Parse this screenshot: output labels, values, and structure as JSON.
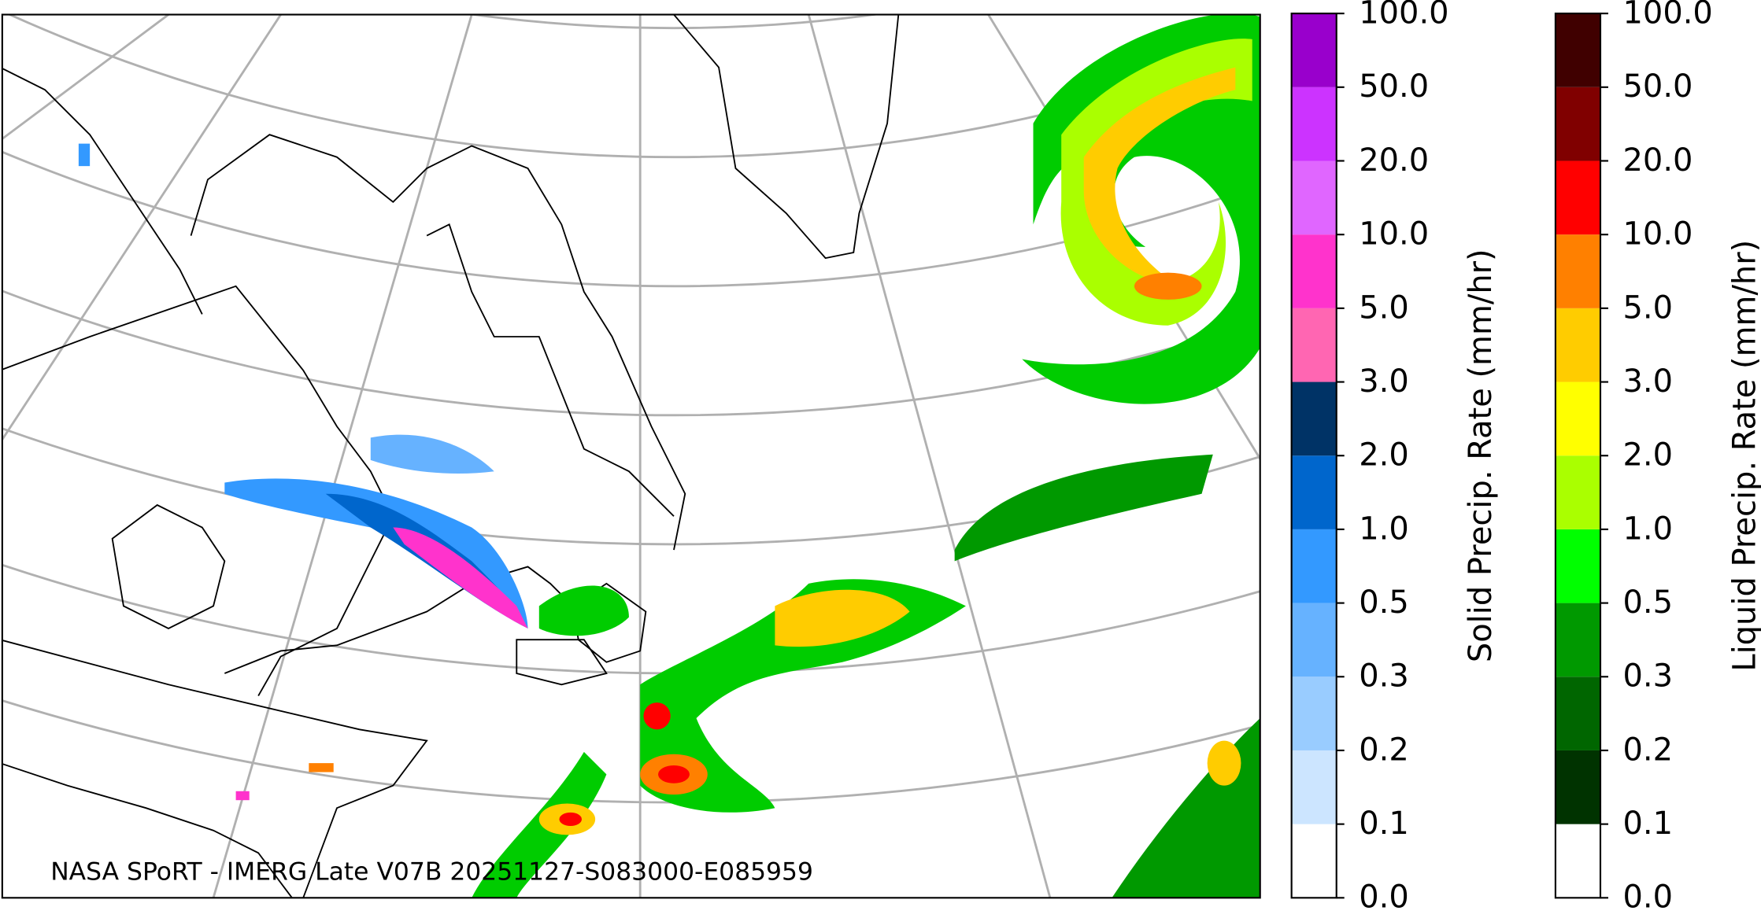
{
  "map": {
    "caption": "NASA SPoRT - IMERG Late V07B 20251127-S083000-E085959"
  },
  "colorbars": [
    {
      "label": "Solid Precip. Rate (mm/hr)",
      "ticks": [
        {
          "value": 0,
          "label": "0.0"
        },
        0.1,
        0.2,
        0.3,
        0.5,
        {
          "value": 1,
          "label": "1.0"
        },
        {
          "value": 2,
          "label": "2.0"
        },
        {
          "value": 3,
          "label": "3.0"
        },
        {
          "value": 5,
          "label": "5.0"
        },
        {
          "value": 10,
          "label": "10.0"
        },
        {
          "value": 20,
          "label": "20.0"
        },
        {
          "value": 50,
          "label": "50.0"
        },
        {
          "value": 100,
          "label": "100.0"
        }
      ],
      "colors": [
        "#ffffff",
        "#cce5ff",
        "#99ccff",
        "#66b2ff",
        "#3399ff",
        "#0066cc",
        "#003366",
        "#ff66b2",
        "#ff33cc",
        "#e066ff",
        "#cc33ff",
        "#9900cc"
      ]
    },
    {
      "label": "Liquid Precip. Rate (mm/hr)",
      "ticks": [
        {
          "value": 0,
          "label": "0.0"
        },
        0.1,
        0.2,
        0.3,
        0.5,
        {
          "value": 1,
          "label": "1.0"
        },
        {
          "value": 2,
          "label": "2.0"
        },
        {
          "value": 3,
          "label": "3.0"
        },
        {
          "value": 5,
          "label": "5.0"
        },
        {
          "value": 10,
          "label": "10.0"
        },
        {
          "value": 20,
          "label": "20.0"
        },
        {
          "value": 50,
          "label": "50.0"
        },
        {
          "value": 100,
          "label": "100.0"
        }
      ],
      "colors": [
        "#ffffff",
        "#003300",
        "#006600",
        "#009900",
        "#00ff00",
        "#aaff00",
        "#ffff00",
        "#ffcc00",
        "#ff8000",
        "#ff0000",
        "#800000",
        "#400000"
      ]
    }
  ]
}
